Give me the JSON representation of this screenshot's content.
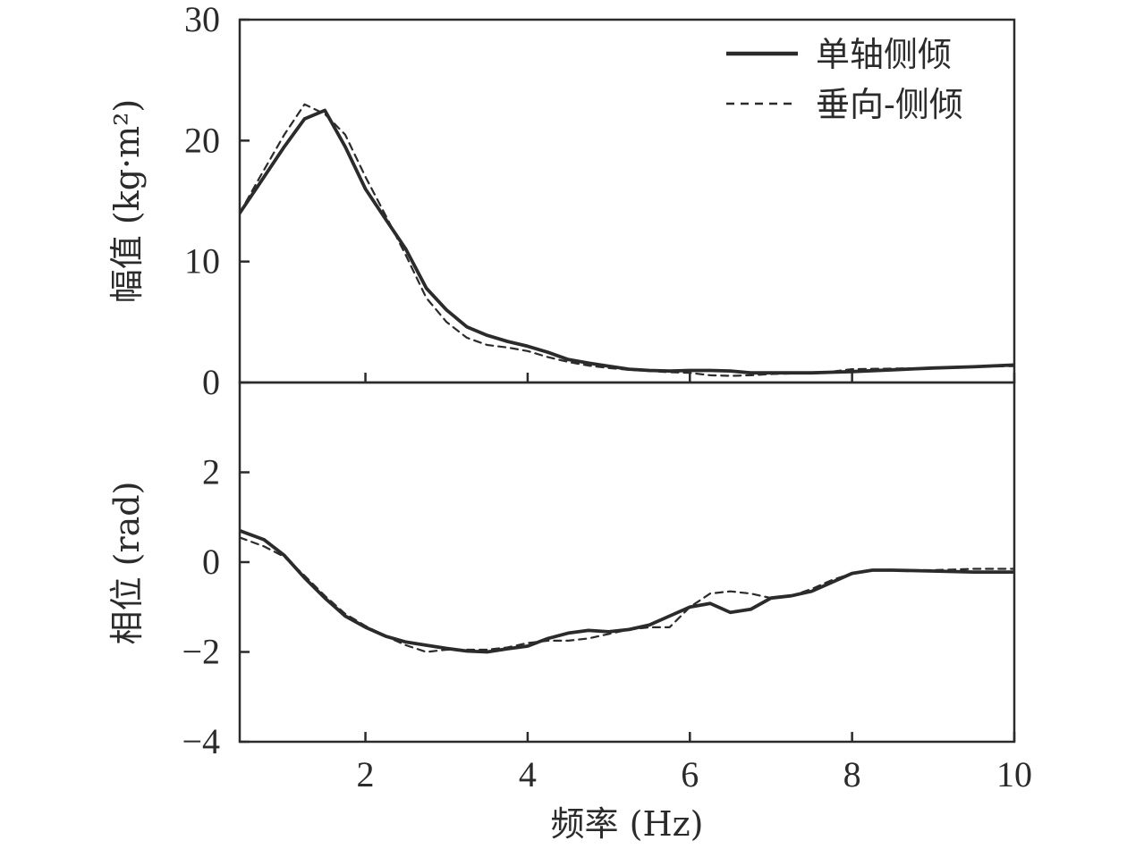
{
  "chart_data": [
    {
      "type": "line",
      "panel": "top",
      "ylabel": "幅值 (kg·m²)",
      "xlabel": "",
      "xlim": [
        0.45,
        10
      ],
      "ylim": [
        0,
        30
      ],
      "yticks": [
        0,
        10,
        20,
        30
      ],
      "ytick_labels": [
        "0",
        "10",
        "20",
        "30"
      ],
      "xticks": [
        2,
        4,
        6,
        8,
        10
      ],
      "xtick_labels": [],
      "legend": {
        "position": "top-right",
        "entries": [
          "单轴侧倾",
          "垂向-侧倾"
        ]
      },
      "series": [
        {
          "name": "单轴侧倾",
          "style": "solid",
          "x": [
            0.45,
            0.7,
            1.0,
            1.25,
            1.5,
            1.75,
            2.0,
            2.25,
            2.5,
            2.75,
            3.0,
            3.25,
            3.5,
            3.75,
            4.0,
            4.25,
            4.5,
            4.75,
            5.0,
            5.25,
            5.5,
            5.75,
            6.0,
            6.25,
            6.5,
            6.75,
            7.0,
            7.25,
            7.5,
            7.75,
            8.0,
            8.5,
            9.0,
            9.5,
            10.0
          ],
          "y": [
            14.0,
            16.5,
            19.5,
            21.8,
            22.5,
            19.5,
            16.0,
            13.5,
            11.0,
            7.8,
            6.0,
            4.6,
            3.9,
            3.4,
            3.0,
            2.5,
            1.9,
            1.6,
            1.35,
            1.1,
            1.0,
            0.95,
            1.0,
            1.0,
            0.95,
            0.8,
            0.8,
            0.8,
            0.8,
            0.85,
            0.9,
            1.05,
            1.2,
            1.3,
            1.45
          ]
        },
        {
          "name": "垂向-侧倾",
          "style": "dashed",
          "x": [
            0.45,
            0.7,
            1.0,
            1.25,
            1.5,
            1.75,
            2.0,
            2.25,
            2.5,
            2.75,
            3.0,
            3.25,
            3.5,
            3.75,
            4.0,
            4.25,
            4.5,
            4.75,
            5.0,
            5.25,
            5.5,
            5.75,
            6.0,
            6.25,
            6.5,
            6.75,
            7.0,
            7.25,
            7.5,
            7.75,
            8.0,
            8.5,
            9.0,
            9.5,
            10.0
          ],
          "y": [
            14.0,
            17.0,
            20.5,
            23.0,
            22.2,
            20.5,
            17.0,
            13.8,
            10.5,
            7.0,
            5.0,
            3.7,
            3.1,
            2.9,
            2.6,
            2.1,
            1.7,
            1.4,
            1.2,
            1.05,
            0.95,
            0.85,
            0.8,
            0.6,
            0.55,
            0.6,
            0.7,
            0.75,
            0.8,
            0.9,
            1.1,
            1.15,
            1.2,
            1.3,
            1.35
          ]
        }
      ]
    },
    {
      "type": "line",
      "panel": "bottom",
      "ylabel": "相位 (rad)",
      "xlabel": "频率 (Hz)",
      "xlim": [
        0.45,
        10
      ],
      "ylim": [
        -4,
        4
      ],
      "yticks": [
        -4,
        -2,
        0,
        2
      ],
      "ytick_labels": [
        "−4",
        "−2",
        "0",
        "2"
      ],
      "xticks": [
        2,
        4,
        6,
        8,
        10
      ],
      "xtick_labels": [
        "2",
        "4",
        "6",
        "8",
        "10"
      ],
      "series": [
        {
          "name": "单轴侧倾",
          "style": "solid",
          "x": [
            0.45,
            0.75,
            1.0,
            1.25,
            1.5,
            1.75,
            2.0,
            2.25,
            2.5,
            2.75,
            3.0,
            3.25,
            3.5,
            3.75,
            4.0,
            4.25,
            4.5,
            4.75,
            5.0,
            5.25,
            5.5,
            5.75,
            6.0,
            6.25,
            6.5,
            6.75,
            7.0,
            7.25,
            7.5,
            7.75,
            8.0,
            8.25,
            8.5,
            9.0,
            9.5,
            10.0
          ],
          "y": [
            0.7,
            0.5,
            0.15,
            -0.35,
            -0.8,
            -1.2,
            -1.45,
            -1.65,
            -1.78,
            -1.85,
            -1.92,
            -1.98,
            -2.0,
            -1.93,
            -1.87,
            -1.7,
            -1.58,
            -1.52,
            -1.55,
            -1.5,
            -1.4,
            -1.2,
            -1.0,
            -0.92,
            -1.12,
            -1.05,
            -0.8,
            -0.75,
            -0.65,
            -0.45,
            -0.25,
            -0.18,
            -0.18,
            -0.2,
            -0.22,
            -0.22
          ]
        },
        {
          "name": "垂向-侧倾",
          "style": "dashed",
          "x": [
            0.45,
            0.75,
            1.0,
            1.25,
            1.5,
            1.75,
            2.0,
            2.25,
            2.5,
            2.75,
            3.0,
            3.25,
            3.5,
            3.75,
            4.0,
            4.25,
            4.5,
            4.75,
            5.0,
            5.25,
            5.5,
            5.75,
            6.0,
            6.25,
            6.5,
            6.75,
            7.0,
            7.25,
            7.5,
            7.75,
            8.0,
            8.25,
            8.5,
            9.0,
            9.5,
            10.0
          ],
          "y": [
            0.55,
            0.35,
            0.12,
            -0.3,
            -0.75,
            -1.15,
            -1.42,
            -1.65,
            -1.85,
            -2.0,
            -1.95,
            -1.95,
            -1.95,
            -1.9,
            -1.8,
            -1.75,
            -1.75,
            -1.7,
            -1.6,
            -1.5,
            -1.45,
            -1.45,
            -1.0,
            -0.7,
            -0.65,
            -0.7,
            -0.8,
            -0.75,
            -0.6,
            -0.4,
            -0.25,
            -0.18,
            -0.18,
            -0.18,
            -0.15,
            -0.15
          ]
        }
      ]
    }
  ]
}
